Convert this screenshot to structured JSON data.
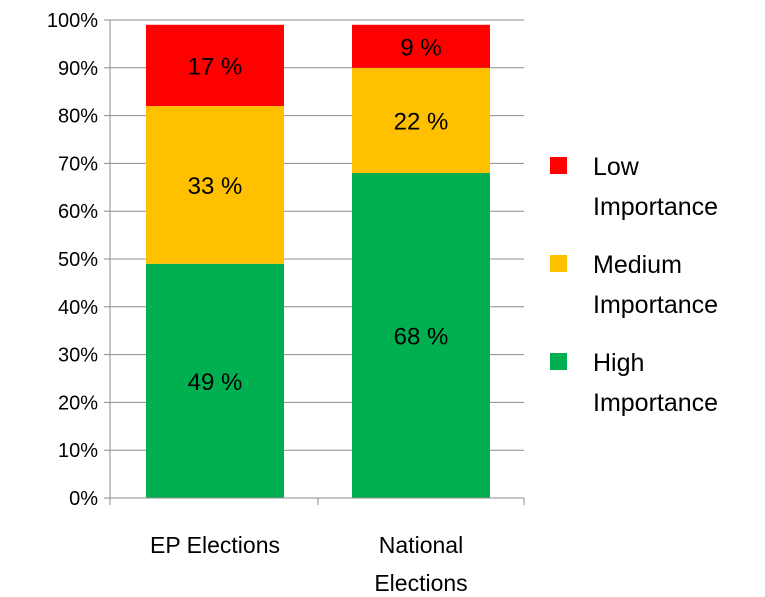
{
  "chart_data": {
    "type": "bar",
    "stacked": true,
    "categories": [
      [
        "EP Elections"
      ],
      [
        "National",
        "Elections"
      ]
    ],
    "series": [
      {
        "name": [
          "High",
          "Importance"
        ],
        "values": [
          49,
          68
        ],
        "labels": [
          "49 %",
          "68 %"
        ],
        "color": "#00b050"
      },
      {
        "name": [
          "Medium",
          "Importance"
        ],
        "values": [
          33,
          22
        ],
        "labels": [
          "33 %",
          "22 %"
        ],
        "color": "#ffc000"
      },
      {
        "name": [
          "Low",
          "Importance"
        ],
        "values": [
          17,
          9
        ],
        "labels": [
          "17 %",
          "9 %"
        ],
        "color": "#ff0000"
      }
    ],
    "legend_order": [
      2,
      1,
      0
    ],
    "legend_position": "right",
    "ylim": [
      0,
      100
    ],
    "yticks": [
      "0%",
      "10%",
      "20%",
      "30%",
      "40%",
      "50%",
      "60%",
      "70%",
      "80%",
      "90%",
      "100%"
    ],
    "grid": true,
    "title": "",
    "xlabel": "",
    "ylabel": ""
  }
}
